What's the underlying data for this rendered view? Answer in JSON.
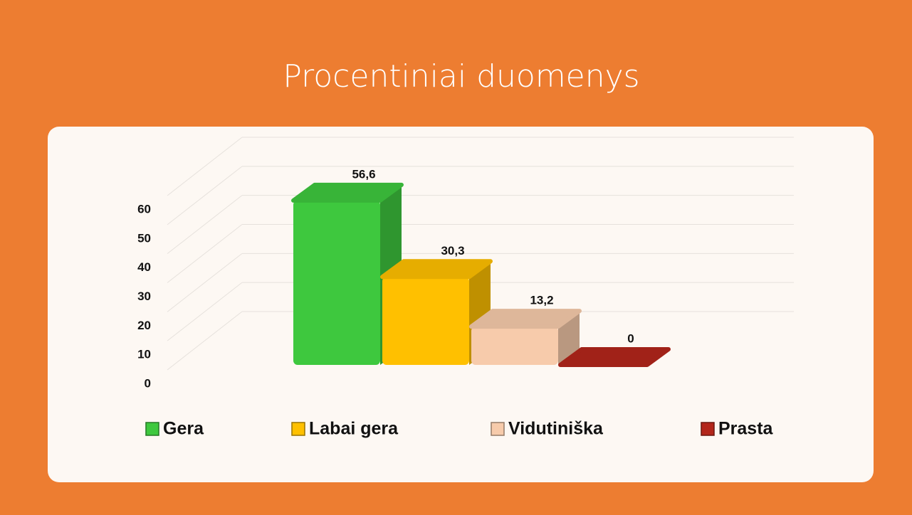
{
  "chart_data": {
    "type": "bar3d",
    "title": "Procentiniai duomenys",
    "series": [
      {
        "name": "Gera",
        "color": "#3ec83e",
        "values": [
          56.6
        ],
        "value_labels": [
          "56,6"
        ]
      },
      {
        "name": "Labai gera",
        "color": "#ffc000",
        "values": [
          30.3
        ],
        "value_labels": [
          "30,3"
        ]
      },
      {
        "name": "Vidutiniška",
        "color": "#f7cbab",
        "values": [
          13.2
        ],
        "value_labels": [
          "13,2"
        ]
      },
      {
        "name": "Prasta",
        "color": "#b3261b",
        "values": [
          0
        ]
      }
    ],
    "ylim": [
      0,
      60
    ],
    "yticks": [
      0,
      10,
      20,
      30,
      40,
      50,
      60
    ],
    "grid": true,
    "legend": "bottom"
  }
}
